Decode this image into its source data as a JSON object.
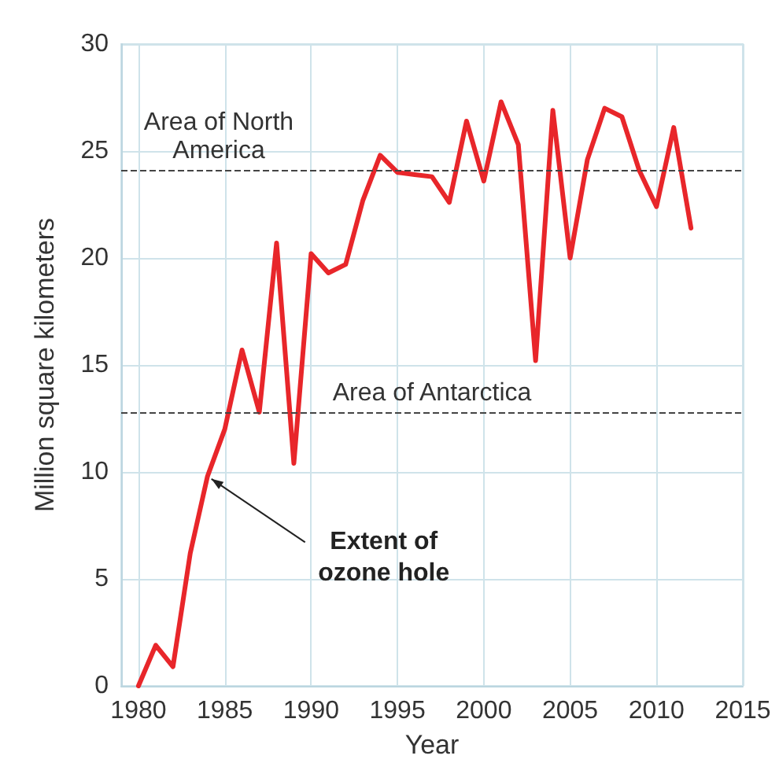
{
  "chart_data": {
    "type": "line",
    "xlabel": "Year",
    "ylabel": "Million square kilometers",
    "x": [
      1980,
      1981,
      1982,
      1983,
      1984,
      1985,
      1986,
      1987,
      1988,
      1989,
      1990,
      1991,
      1992,
      1993,
      1994,
      1995,
      1996,
      1997,
      1998,
      1999,
      2000,
      2001,
      2002,
      2003,
      2004,
      2005,
      2006,
      2007,
      2008,
      2009,
      2010,
      2011,
      2012
    ],
    "series": [
      {
        "color": "#e8262a",
        "values": [
          0,
          1.9,
          0.9,
          6.2,
          9.8,
          12.0,
          15.7,
          12.8,
          20.7,
          10.4,
          20.2,
          19.3,
          19.7,
          22.7,
          24.8,
          24.0,
          23.9,
          23.8,
          22.6,
          26.4,
          23.6,
          27.3,
          25.3,
          15.2,
          26.9,
          20.0,
          24.6,
          27.0,
          26.6,
          24.1,
          22.4,
          26.1,
          21.4
        ]
      }
    ],
    "xlim": [
      1979,
      2015
    ],
    "xticks": [
      1980,
      1985,
      1990,
      1995,
      2000,
      2005,
      2010,
      2015
    ],
    "ylim": [
      0,
      30
    ],
    "yticks": [
      0,
      5,
      10,
      15,
      20,
      25,
      30
    ],
    "grid": true,
    "marker": "none",
    "line_style": "solid",
    "ref_lines": [
      {
        "axis": "y",
        "value": 24.1,
        "label": "Area of North\nAmerica",
        "color": "#444444",
        "line_style": "dashed"
      },
      {
        "axis": "y",
        "value": 12.8,
        "label": "Area of Antarctica",
        "color": "#444444",
        "line_style": "dashed"
      }
    ],
    "annotations": [
      {
        "text": "Extent of\nozone hole",
        "x": 1984,
        "y": 9.8
      }
    ]
  }
}
